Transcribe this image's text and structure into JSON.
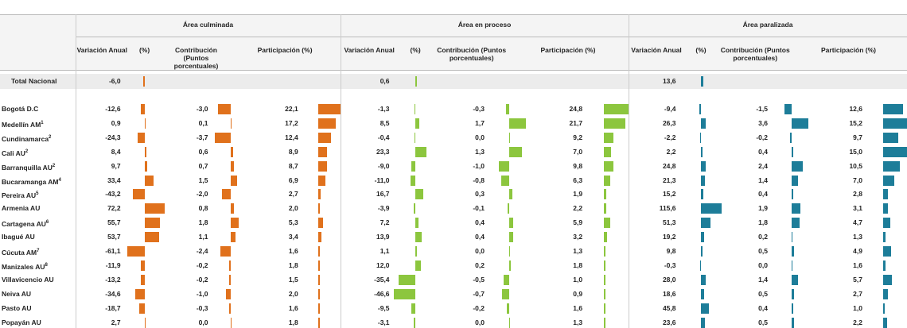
{
  "table": {
    "groups": [
      "Área culminada",
      "Área en proceso",
      "Área paralizada"
    ],
    "columns": [
      "Variación Anual",
      "(%)",
      "Contribución (Puntos porcentuales)",
      "Participación (%)"
    ],
    "rows": [
      {
        "name": "Total Nacional",
        "cells": [
          "-6,0",
          null,
          null,
          "0,6",
          null,
          null,
          "13,6",
          null,
          null
        ]
      },
      {
        "name": "Bogotá D.C",
        "cells": [
          "-12,6",
          "-3,0",
          "22,1",
          "-1,3",
          "-0,3",
          "24,8",
          "-9,4",
          "-1,5",
          "12,6"
        ]
      },
      {
        "name": "Medellín AM",
        "note": "1",
        "cells": [
          "0,9",
          "0,1",
          "17,2",
          "8,5",
          "1,7",
          "21,7",
          "26,3",
          "3,6",
          "15,2"
        ]
      },
      {
        "name": "Cundinamarca",
        "note": "2",
        "cells": [
          "-24,3",
          "-3,7",
          "12,4",
          "-0,4",
          "0,0",
          "9,2",
          "-2,2",
          "-0,2",
          "9,7"
        ]
      },
      {
        "name": "Cali AU",
        "note": "2",
        "cells": [
          "8,4",
          "0,6",
          "8,9",
          "23,3",
          "1,3",
          "7,0",
          "2,2",
          "0,4",
          "15,0"
        ]
      },
      {
        "name": "Barranquilla AU",
        "note": "2",
        "cells": [
          "9,7",
          "0,7",
          "8,7",
          "-9,0",
          "-1,0",
          "9,8",
          "24,8",
          "2,4",
          "10,5"
        ]
      },
      {
        "name": "Bucaramanga AM",
        "note": "4",
        "cells": [
          "33,4",
          "1,5",
          "6,9",
          "-11,0",
          "-0,8",
          "6,3",
          "21,3",
          "1,4",
          "7,0"
        ]
      },
      {
        "name": "Pereira AU",
        "note": "5",
        "cells": [
          "-43,2",
          "-2,0",
          "2,7",
          "16,7",
          "0,3",
          "1,9",
          "15,2",
          "0,4",
          "2,8"
        ]
      },
      {
        "name": "Armenia AU",
        "cells": [
          "72,2",
          "0,8",
          "2,0",
          "-3,9",
          "-0,1",
          "2,2",
          "115,6",
          "1,9",
          "3,1"
        ]
      },
      {
        "name": "Cartagena AU",
        "note": "6",
        "cells": [
          "55,7",
          "1,8",
          "5,3",
          "7,2",
          "0,4",
          "5,9",
          "51,3",
          "1,8",
          "4,7"
        ]
      },
      {
        "name": "Ibagué AU",
        "cells": [
          "53,7",
          "1,1",
          "3,4",
          "13,9",
          "0,4",
          "3,2",
          "19,2",
          "0,2",
          "1,3"
        ]
      },
      {
        "name": "Cúcuta AM",
        "note": "7",
        "cells": [
          "-61,1",
          "-2,4",
          "1,6",
          "1,1",
          "0,0",
          "1,3",
          "9,8",
          "0,5",
          "4,9"
        ]
      },
      {
        "name": "Manizales AU",
        "note": "8",
        "cells": [
          "-11,9",
          "-0,2",
          "1,8",
          "12,0",
          "0,2",
          "1,8",
          "-0,3",
          "0,0",
          "1,6"
        ]
      },
      {
        "name": "Villavicencio AU",
        "cells": [
          "-13,2",
          "-0,2",
          "1,5",
          "-35,4",
          "-0,5",
          "1,0",
          "28,0",
          "1,4",
          "5,7"
        ]
      },
      {
        "name": "Neiva AU",
        "cells": [
          "-34,6",
          "-1,0",
          "2,0",
          "-46,6",
          "-0,7",
          "0,9",
          "18,6",
          "0,5",
          "2,7"
        ]
      },
      {
        "name": "Pasto AU",
        "cells": [
          "-18,7",
          "-0,3",
          "1,6",
          "-9,5",
          "-0,2",
          "1,6",
          "45,8",
          "0,4",
          "1,0"
        ]
      },
      {
        "name": "Popayán AU",
        "cells": [
          "2,7",
          "0,0",
          "1,8",
          "-3,1",
          "0,0",
          "1,3",
          "23,6",
          "0,5",
          "2,2"
        ]
      }
    ],
    "colors": [
      "#e0711c",
      "#8cc63e",
      "#1d7d99"
    ]
  }
}
